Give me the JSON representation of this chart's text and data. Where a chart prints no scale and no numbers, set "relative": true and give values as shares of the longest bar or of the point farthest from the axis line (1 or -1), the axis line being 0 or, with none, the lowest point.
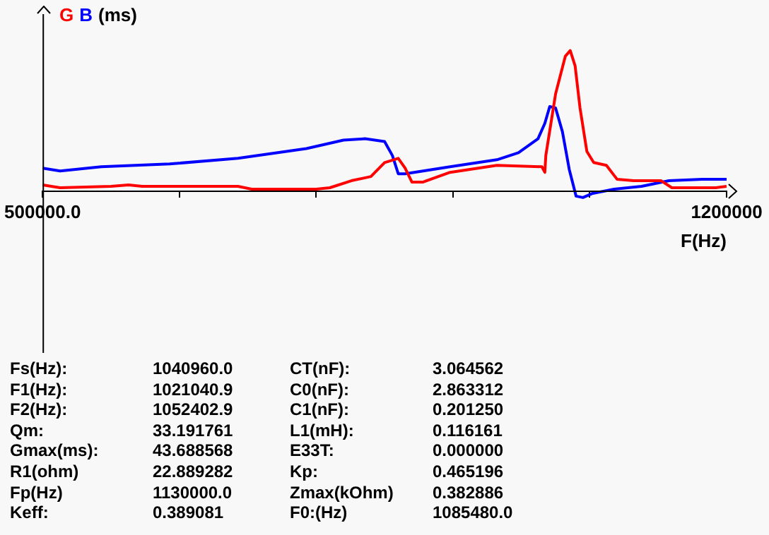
{
  "chart_data": {
    "type": "line",
    "xlabel": "F(Hz)",
    "ylabel": "(ms)",
    "relative": true,
    "legend": "top left",
    "grid": false,
    "marker": "none",
    "line_style": "solid",
    "xlim": [
      500000,
      1200000
    ],
    "xticks": [
      {
        "value": 500000,
        "label": "500000.0"
      },
      {
        "value": 640000,
        "label": null
      },
      {
        "value": 780000,
        "label": null
      },
      {
        "value": 920000,
        "label": null
      },
      {
        "value": 1060000,
        "label": null
      },
      1200000
    ],
    "series": [
      {
        "name": "G",
        "color": "#ff0000",
        "x": [
          500000,
          518000,
          570000,
          588000,
          602000,
          700000,
          714000,
          780000,
          794000,
          816000,
          836000,
          850000,
          864000,
          871000,
          878000,
          889000,
          917000,
          965000,
          1011000,
          1014000,
          1015000,
          1025000,
          1035000,
          1040000,
          1045000,
          1050000,
          1057000,
          1064000,
          1077000,
          1088000,
          1105000,
          1133000,
          1144000,
          1189000,
          1200000
        ],
        "values": [
          0.04,
          0.02,
          0.03,
          0.04,
          0.03,
          0.03,
          0.01,
          0.01,
          0.02,
          0.07,
          0.1,
          0.2,
          0.23,
          0.16,
          0.06,
          0.06,
          0.13,
          0.18,
          0.17,
          0.13,
          0.25,
          0.69,
          0.96,
          1,
          0.89,
          0.59,
          0.28,
          0.2,
          0.18,
          0.08,
          0.07,
          0.07,
          0.02,
          0.02,
          0.03
        ]
      },
      {
        "name": "B",
        "color": "#0000ff",
        "x": [
          500000,
          518000,
          560000,
          630000,
          700000,
          770000,
          808000,
          830000,
          850000,
          858000,
          864000,
          871000,
          917000,
          965000,
          987000,
          1007000,
          1014000,
          1019000,
          1025000,
          1032000,
          1039000,
          1046000,
          1053000,
          1063000,
          1085000,
          1113000,
          1141000,
          1175000,
          1200000
        ],
        "values": [
          0.16,
          0.14,
          0.17,
          0.19,
          0.23,
          0.3,
          0.36,
          0.37,
          0.35,
          0.25,
          0.12,
          0.12,
          0.17,
          0.22,
          0.27,
          0.37,
          0.48,
          0.6,
          0.59,
          0.42,
          0.15,
          -0.04,
          -0.05,
          -0.02,
          0.01,
          0.03,
          0.07,
          0.08,
          0.08
        ]
      }
    ],
    "annotations": [
      "Fs(Hz):",
      "1040960.0",
      "CT(nF):",
      "3.064562",
      "F1(Hz):",
      "1021040.9",
      "C0(nF):",
      "2.863312",
      "F2(Hz):",
      "1052402.9",
      "C1(nF):",
      "0.201250",
      "Qm:",
      "33.191761",
      "L1(mH):",
      "0.116161",
      "Gmax(ms):",
      "43.688568",
      "E33T:",
      "0.000000",
      "R1(ohm)",
      "22.889282",
      "Kp:",
      "0.465196",
      "Fp(Hz)",
      "1130000.0",
      "Zmax(kOhm)",
      "0.382886",
      "Keff:",
      "0.389081",
      "F0:(Hz)",
      "1085480.0"
    ]
  }
}
